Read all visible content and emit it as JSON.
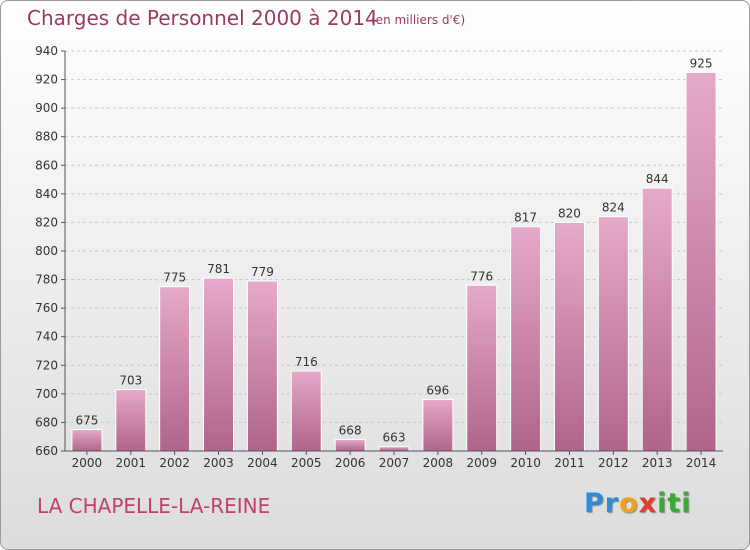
{
  "title": "Charges de Personnel 2000 à 2014",
  "subtitle": "(en milliers d'€)",
  "place": "LA CHAPELLE-LA-REINE",
  "logo": {
    "letters": [
      "P",
      "r",
      "o",
      "x",
      "i",
      "t",
      "i"
    ],
    "colors": [
      "#2e8bd8",
      "#2e8bd8",
      "#f0a21c",
      "#e53a2c",
      "#3aa935",
      "#3aa935",
      "#3aa935"
    ]
  },
  "colors": {
    "bar_top": "#e6a9c9",
    "bar_bottom": "#b0648c",
    "title": "#9b3b63",
    "grid": "#c8c8c8"
  },
  "chart_data": {
    "type": "bar",
    "title": "Charges de Personnel 2000 à 2014",
    "subtitle": "(en milliers d'€)",
    "categories": [
      "2000",
      "2001",
      "2002",
      "2003",
      "2004",
      "2005",
      "2006",
      "2007",
      "2008",
      "2009",
      "2010",
      "2011",
      "2012",
      "2013",
      "2014"
    ],
    "values": [
      675,
      703,
      775,
      781,
      779,
      716,
      668,
      663,
      696,
      776,
      817,
      820,
      824,
      844,
      925
    ],
    "ylim": [
      660,
      940
    ],
    "yticks": [
      660,
      680,
      700,
      720,
      740,
      760,
      780,
      800,
      820,
      840,
      860,
      880,
      900,
      920,
      940
    ],
    "grid": true,
    "xlabel": "",
    "ylabel": ""
  }
}
